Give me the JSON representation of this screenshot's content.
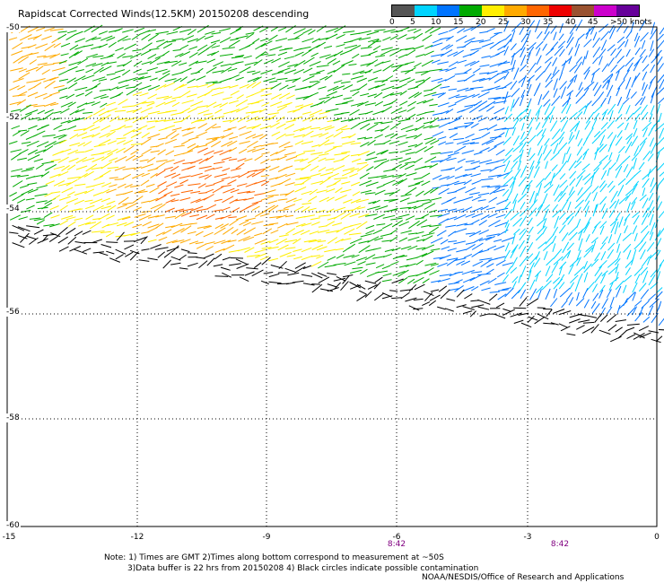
{
  "title": "Rapidscat Corrected Winds(12.5KM) 20150208 descending",
  "legend": {
    "labels": [
      "0",
      "5",
      "10",
      "15",
      "20",
      "25",
      "30",
      "35",
      "40",
      "45",
      ">50 knots"
    ],
    "colors": [
      "#555555",
      "#00d4ff",
      "#0074ff",
      "#00aa00",
      "#ffee00",
      "#ffaa00",
      "#ff6600",
      "#ee0000",
      "#9a5230",
      "#cc00cc",
      "#660099"
    ]
  },
  "axes": {
    "latitudes": [
      "-50",
      "-52",
      "-54",
      "-56",
      "-58",
      "-60"
    ],
    "longitudes": [
      "-15",
      "-12",
      "-9",
      "-6",
      "-3",
      "0"
    ]
  },
  "pass_times": [
    "8:42",
    "8:42"
  ],
  "notes": [
    "Note: 1) Times are GMT 2)Times along bottom correspond to measurement at ~50S",
    "3)Data buffer is 22 hrs from 20150208 4) Black circles indicate possible contamination"
  ],
  "credit": "NOAA/NESDIS/Office of Research and Applications"
}
